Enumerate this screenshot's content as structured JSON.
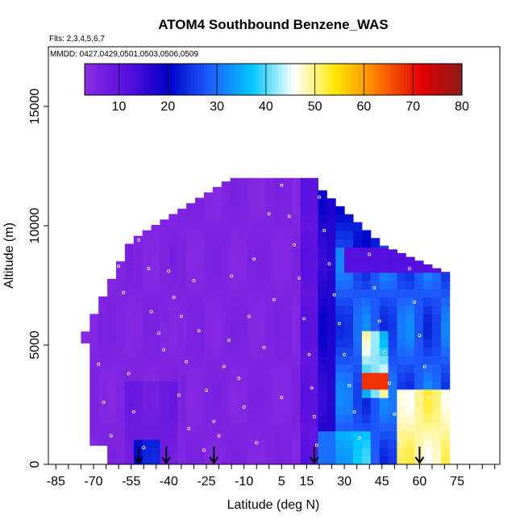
{
  "chart_data": {
    "type": "heatmap",
    "title": "ATOM4 Southbound Benzene_WAS",
    "subtitle_flights": "Flts: 2,3,4,5,6,7",
    "subtitle_dates": "MMDD: 0427,0429,0501,0503,0506,0509",
    "xlabel": "Latitude (deg N)",
    "ylabel": "Altitude (m)",
    "xlim": [
      -88,
      92
    ],
    "ylim": [
      0,
      17500
    ],
    "x_ticks": [
      -85,
      -70,
      -55,
      -40,
      -25,
      -10,
      5,
      15,
      30,
      45,
      60,
      75
    ],
    "x_tick_labels": [
      "-85",
      "-70",
      "-55",
      "-40",
      "-25",
      "-10",
      "5",
      "15",
      "30",
      "45",
      "60",
      "75"
    ],
    "y_ticks": [
      0,
      5000,
      10000,
      15000
    ],
    "y_tick_labels": [
      "0",
      "5000",
      "10000",
      "15000"
    ],
    "colorbar": {
      "range": [
        3,
        80
      ],
      "ticks": [
        10,
        20,
        30,
        40,
        50,
        60,
        70,
        80
      ],
      "tick_labels": [
        "10",
        "20",
        "30",
        "40",
        "50",
        "60",
        "70",
        "80"
      ],
      "colors": [
        "#8a2be2",
        "#5a10e0",
        "#0000c8",
        "#1f5fff",
        "#00c8ff",
        "#ffffff",
        "#ffe600",
        "#ff7800",
        "#e60000",
        "#8b1a1a"
      ]
    },
    "arrows_lat": [
      -52,
      -41,
      -22,
      18,
      60
    ],
    "samples": [
      [
        -65,
        9000
      ],
      [
        -60,
        8300
      ],
      [
        -58,
        7200
      ],
      [
        -52,
        9400
      ],
      [
        -48,
        8200
      ],
      [
        -47,
        6400
      ],
      [
        -44,
        5500
      ],
      [
        -42,
        4800
      ],
      [
        -40,
        8100
      ],
      [
        -38,
        7000
      ],
      [
        -35,
        6200
      ],
      [
        -33,
        4300
      ],
      [
        -30,
        7700
      ],
      [
        -28,
        5600
      ],
      [
        -25,
        3100
      ],
      [
        -22,
        1800
      ],
      [
        -20,
        1200
      ],
      [
        -18,
        4100
      ],
      [
        -15,
        7900
      ],
      [
        -12,
        3600
      ],
      [
        -10,
        2400
      ],
      [
        -8,
        6200
      ],
      [
        -5,
        900
      ],
      [
        -2,
        4900
      ],
      [
        2,
        6900
      ],
      [
        5,
        2800
      ],
      [
        8,
        10400
      ],
      [
        10,
        9200
      ],
      [
        12,
        7800
      ],
      [
        14,
        6100
      ],
      [
        16,
        4600
      ],
      [
        17,
        3200
      ],
      [
        18,
        2000
      ],
      [
        19,
        800
      ],
      [
        20,
        11200
      ],
      [
        22,
        9800
      ],
      [
        24,
        8400
      ],
      [
        26,
        7100
      ],
      [
        28,
        5900
      ],
      [
        30,
        4600
      ],
      [
        32,
        3300
      ],
      [
        34,
        2200
      ],
      [
        36,
        1100
      ],
      [
        38,
        10100
      ],
      [
        40,
        8800
      ],
      [
        42,
        7400
      ],
      [
        44,
        6000
      ],
      [
        46,
        4700
      ],
      [
        48,
        3400
      ],
      [
        50,
        2100
      ],
      [
        52,
        1000
      ],
      [
        54,
        9500
      ],
      [
        56,
        8200
      ],
      [
        58,
        6800
      ],
      [
        60,
        5400
      ],
      [
        62,
        4100
      ],
      [
        64,
        2800
      ],
      [
        66,
        1500
      ],
      [
        68,
        500
      ],
      [
        -70,
        6500
      ],
      [
        -68,
        4200
      ],
      [
        -66,
        2600
      ],
      [
        -63,
        1200
      ],
      [
        -56,
        3800
      ],
      [
        -54,
        2200
      ],
      [
        -50,
        700
      ],
      [
        -36,
        2900
      ],
      [
        -32,
        1500
      ],
      [
        -26,
        600
      ],
      [
        -16,
        5200
      ],
      [
        -6,
        8600
      ],
      [
        0,
        10500
      ],
      [
        5,
        11700
      ],
      [
        -3,
        12400
      ]
    ]
  }
}
